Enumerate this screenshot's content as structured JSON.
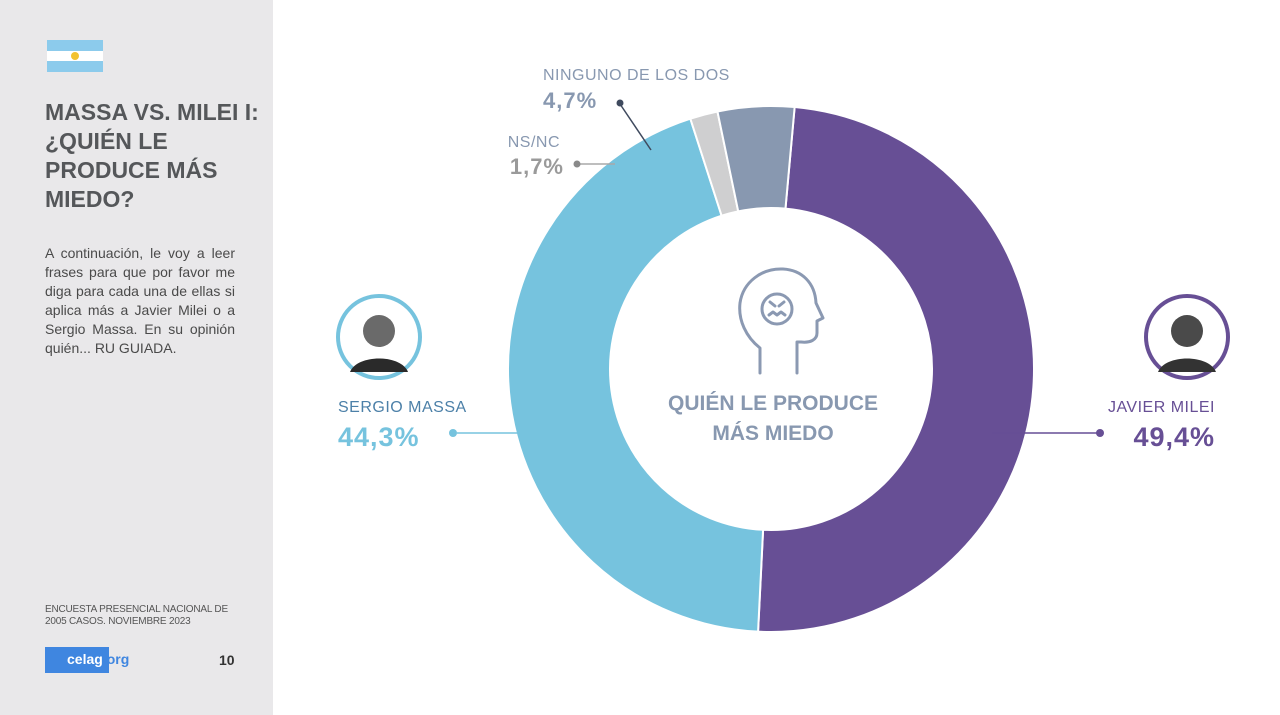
{
  "sidebar": {
    "title": "MASSA VS. MILEI I: ¿QUIÉN LE PRODUCE MÁS MIEDO?",
    "description": "A continuación, le voy a leer frases para que por favor me diga para cada una de ellas si aplica más a Javier Milei o a Sergio Massa. En su opinión quién... RU GUIADA.",
    "source": "ENCUESTA PRESENCIAL NACIONAL DE 2005 CASOS. NOVIEMBRE 2023",
    "logo_main": "celag",
    "logo_suffix": ".org",
    "page_number": "10",
    "flag_icon": "argentina-flag-icon"
  },
  "chart_data": {
    "type": "pie",
    "center_label_line1": "QUIÉN LE PRODUCE",
    "center_label_line2": "MÁS MIEDO",
    "center_icon": "anxious-head-icon",
    "slices": [
      {
        "name": "JAVIER MILEI",
        "value": 49.4,
        "label": "49,4%",
        "color": "#674f95"
      },
      {
        "name": "SERGIO MASSA",
        "value": 44.3,
        "label": "44,3%",
        "color": "#76c3de"
      },
      {
        "name": "NS/NC",
        "value": 1.7,
        "label": "1,7%",
        "color": "#cfcfd0"
      },
      {
        "name": "NINGUNO DE LOS DOS",
        "value": 4.7,
        "label": "4,7%",
        "color": "#8898b0"
      }
    ]
  }
}
